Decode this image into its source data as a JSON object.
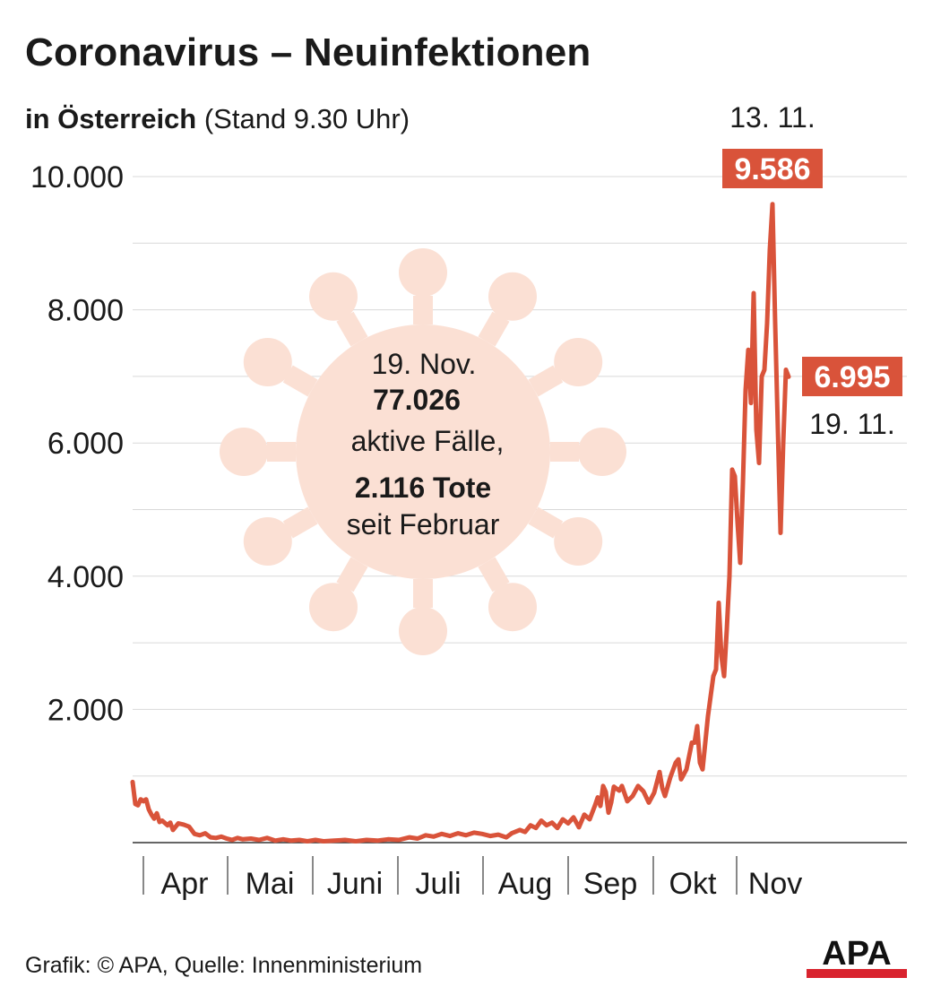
{
  "header": {
    "title": "Coronavirus – Neuinfektionen",
    "subtitle_bold": "in Österreich",
    "subtitle_rest": " (Stand 9.30 Uhr)"
  },
  "info_box": {
    "line1": "19. Nov.",
    "line2": "77.026",
    "line3": "aktive Fälle,",
    "line4": "2.116 Tote",
    "line5": "seit Februar"
  },
  "annotations": {
    "peak_date": "13. 11.",
    "peak_value": "9.586",
    "last_value": "6.995",
    "last_date": "19. 11."
  },
  "footer": {
    "source": "Grafik: © APA, Quelle: Innenministerium"
  },
  "logo": {
    "text": "APA"
  },
  "colors": {
    "line": "#d9533a",
    "virus": "#fbe0d4",
    "grid": "#d9d9d9",
    "label_bg": "#d9533a"
  },
  "chart_data": {
    "type": "line",
    "title": "Coronavirus – Neuinfektionen",
    "subtitle": "in Österreich (Stand 9.30 Uhr)",
    "xlabel": "",
    "ylabel": "",
    "ylim": [
      0,
      10000
    ],
    "yticks": [
      2000,
      4000,
      6000,
      8000,
      10000
    ],
    "ytick_labels": [
      "2.000",
      "4.000",
      "6.000",
      "8.000",
      "10.000"
    ],
    "month_labels": [
      "Apr",
      "Mai",
      "Juni",
      "Juli",
      "Aug",
      "Sep",
      "Okt",
      "Nov"
    ],
    "x_start": "2020-03-20",
    "x_end": "2020-11-19",
    "series": [
      {
        "points": [
          [
            "2020-03-20",
            910
          ],
          [
            "2020-03-21",
            580
          ],
          [
            "2020-03-22",
            560
          ],
          [
            "2020-03-23",
            650
          ],
          [
            "2020-03-24",
            620
          ],
          [
            "2020-03-25",
            650
          ],
          [
            "2020-03-26",
            500
          ],
          [
            "2020-03-27",
            420
          ],
          [
            "2020-03-28",
            360
          ],
          [
            "2020-03-29",
            440
          ],
          [
            "2020-03-30",
            310
          ],
          [
            "2020-03-31",
            330
          ],
          [
            "2020-04-02",
            260
          ],
          [
            "2020-04-03",
            300
          ],
          [
            "2020-04-04",
            190
          ],
          [
            "2020-04-06",
            290
          ],
          [
            "2020-04-08",
            270
          ],
          [
            "2020-04-10",
            240
          ],
          [
            "2020-04-12",
            130
          ],
          [
            "2020-04-14",
            110
          ],
          [
            "2020-04-16",
            140
          ],
          [
            "2020-04-18",
            80
          ],
          [
            "2020-04-20",
            70
          ],
          [
            "2020-04-22",
            90
          ],
          [
            "2020-04-24",
            60
          ],
          [
            "2020-04-26",
            40
          ],
          [
            "2020-04-28",
            70
          ],
          [
            "2020-04-30",
            50
          ],
          [
            "2020-05-03",
            60
          ],
          [
            "2020-05-06",
            40
          ],
          [
            "2020-05-09",
            70
          ],
          [
            "2020-05-12",
            30
          ],
          [
            "2020-05-15",
            50
          ],
          [
            "2020-05-18",
            30
          ],
          [
            "2020-05-21",
            40
          ],
          [
            "2020-05-24",
            20
          ],
          [
            "2020-05-27",
            40
          ],
          [
            "2020-05-30",
            20
          ],
          [
            "2020-06-03",
            30
          ],
          [
            "2020-06-07",
            40
          ],
          [
            "2020-06-11",
            20
          ],
          [
            "2020-06-15",
            40
          ],
          [
            "2020-06-19",
            30
          ],
          [
            "2020-06-23",
            50
          ],
          [
            "2020-06-27",
            40
          ],
          [
            "2020-07-01",
            80
          ],
          [
            "2020-07-04",
            60
          ],
          [
            "2020-07-07",
            110
          ],
          [
            "2020-07-10",
            90
          ],
          [
            "2020-07-13",
            130
          ],
          [
            "2020-07-16",
            100
          ],
          [
            "2020-07-19",
            140
          ],
          [
            "2020-07-22",
            110
          ],
          [
            "2020-07-25",
            150
          ],
          [
            "2020-07-28",
            130
          ],
          [
            "2020-07-31",
            100
          ],
          [
            "2020-08-03",
            120
          ],
          [
            "2020-08-06",
            80
          ],
          [
            "2020-08-08",
            140
          ],
          [
            "2020-08-11",
            190
          ],
          [
            "2020-08-13",
            160
          ],
          [
            "2020-08-15",
            260
          ],
          [
            "2020-08-17",
            220
          ],
          [
            "2020-08-19",
            330
          ],
          [
            "2020-08-21",
            260
          ],
          [
            "2020-08-23",
            300
          ],
          [
            "2020-08-25",
            220
          ],
          [
            "2020-08-27",
            350
          ],
          [
            "2020-08-29",
            290
          ],
          [
            "2020-08-31",
            380
          ],
          [
            "2020-09-02",
            230
          ],
          [
            "2020-09-04",
            420
          ],
          [
            "2020-09-06",
            350
          ],
          [
            "2020-09-08",
            560
          ],
          [
            "2020-09-09",
            680
          ],
          [
            "2020-09-10",
            550
          ],
          [
            "2020-09-11",
            850
          ],
          [
            "2020-09-12",
            760
          ],
          [
            "2020-09-13",
            450
          ],
          [
            "2020-09-14",
            600
          ],
          [
            "2020-09-15",
            840
          ],
          [
            "2020-09-17",
            780
          ],
          [
            "2020-09-18",
            850
          ],
          [
            "2020-09-20",
            620
          ],
          [
            "2020-09-22",
            700
          ],
          [
            "2020-09-24",
            850
          ],
          [
            "2020-09-26",
            770
          ],
          [
            "2020-09-28",
            600
          ],
          [
            "2020-09-30",
            750
          ],
          [
            "2020-10-02",
            1060
          ],
          [
            "2020-10-03",
            820
          ],
          [
            "2020-10-04",
            700
          ],
          [
            "2020-10-06",
            980
          ],
          [
            "2020-10-08",
            1200
          ],
          [
            "2020-10-09",
            1250
          ],
          [
            "2020-10-10",
            950
          ],
          [
            "2020-10-12",
            1100
          ],
          [
            "2020-10-14",
            1500
          ],
          [
            "2020-10-15",
            1500
          ],
          [
            "2020-10-16",
            1750
          ],
          [
            "2020-10-17",
            1200
          ],
          [
            "2020-10-18",
            1100
          ],
          [
            "2020-10-20",
            1900
          ],
          [
            "2020-10-22",
            2500
          ],
          [
            "2020-10-23",
            2600
          ],
          [
            "2020-10-24",
            3600
          ],
          [
            "2020-10-25",
            2800
          ],
          [
            "2020-10-26",
            2500
          ],
          [
            "2020-10-27",
            3200
          ],
          [
            "2020-10-28",
            4000
          ],
          [
            "2020-10-29",
            5600
          ],
          [
            "2020-10-30",
            5500
          ],
          [
            "2020-10-31",
            4800
          ],
          [
            "2020-11-01",
            4200
          ],
          [
            "2020-11-02",
            5400
          ],
          [
            "2020-11-03",
            6800
          ],
          [
            "2020-11-04",
            7400
          ],
          [
            "2020-11-05",
            6600
          ],
          [
            "2020-11-06",
            8250
          ],
          [
            "2020-11-07",
            6200
          ],
          [
            "2020-11-08",
            5700
          ],
          [
            "2020-11-09",
            7000
          ],
          [
            "2020-11-10",
            7100
          ],
          [
            "2020-11-11",
            7800
          ],
          [
            "2020-11-12",
            8900
          ],
          [
            "2020-11-13",
            9586
          ],
          [
            "2020-11-14",
            7800
          ],
          [
            "2020-11-15",
            6200
          ],
          [
            "2020-11-16",
            4650
          ],
          [
            "2020-11-17",
            6000
          ],
          [
            "2020-11-18",
            7100
          ],
          [
            "2020-11-19",
            6995
          ]
        ]
      }
    ],
    "annotations": [
      {
        "date": "2020-11-13",
        "label": "9.586",
        "date_label": "13. 11."
      },
      {
        "date": "2020-11-19",
        "label": "6.995",
        "date_label": "19. 11."
      }
    ],
    "grid": true
  }
}
